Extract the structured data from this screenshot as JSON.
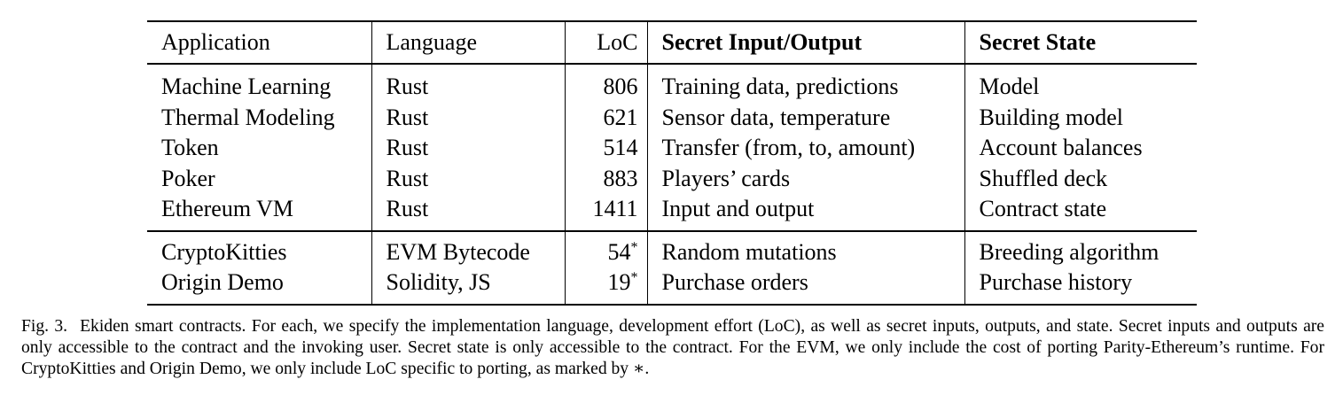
{
  "table": {
    "headers": {
      "application": "Application",
      "language": "Language",
      "loc": "LoC",
      "secret_io": "Secret Input/Output",
      "secret_state": "Secret State"
    },
    "group1": [
      {
        "application": "Machine Learning",
        "language": "Rust",
        "loc": "806",
        "loc_mark": "",
        "secret_io": "Training data, predictions",
        "secret_state": "Model"
      },
      {
        "application": "Thermal Modeling",
        "language": "Rust",
        "loc": "621",
        "loc_mark": "",
        "secret_io": "Sensor data, temperature",
        "secret_state": "Building model"
      },
      {
        "application": "Token",
        "language": "Rust",
        "loc": "514",
        "loc_mark": "",
        "secret_io": "Transfer (from, to, amount)",
        "secret_state": "Account balances"
      },
      {
        "application": "Poker",
        "language": "Rust",
        "loc": "883",
        "loc_mark": "",
        "secret_io": "Players’ cards",
        "secret_state": "Shuffled deck"
      },
      {
        "application": "Ethereum VM",
        "language": "Rust",
        "loc": "1411",
        "loc_mark": "",
        "secret_io": "Input and output",
        "secret_state": "Contract state"
      }
    ],
    "group2": [
      {
        "application": "CryptoKitties",
        "language": "EVM Bytecode",
        "loc": "54",
        "loc_mark": "*",
        "secret_io": "Random mutations",
        "secret_state": "Breeding algorithm"
      },
      {
        "application": "Origin Demo",
        "language": "Solidity, JS",
        "loc": "19",
        "loc_mark": "*",
        "secret_io": "Purchase orders",
        "secret_state": "Purchase history"
      }
    ]
  },
  "caption": {
    "label": "Fig. 3.",
    "text": "Ekiden smart contracts. For each, we specify the implementation language, development effort (LoC), as well as secret inputs, outputs, and state. Secret inputs and outputs are only accessible to the contract and the invoking user. Secret state is only accessible to the contract. For the EVM, we only include the cost of porting Parity-Ethereum’s runtime. For CryptoKitties and Origin Demo, we only include LoC specific to porting, as marked by ∗."
  }
}
